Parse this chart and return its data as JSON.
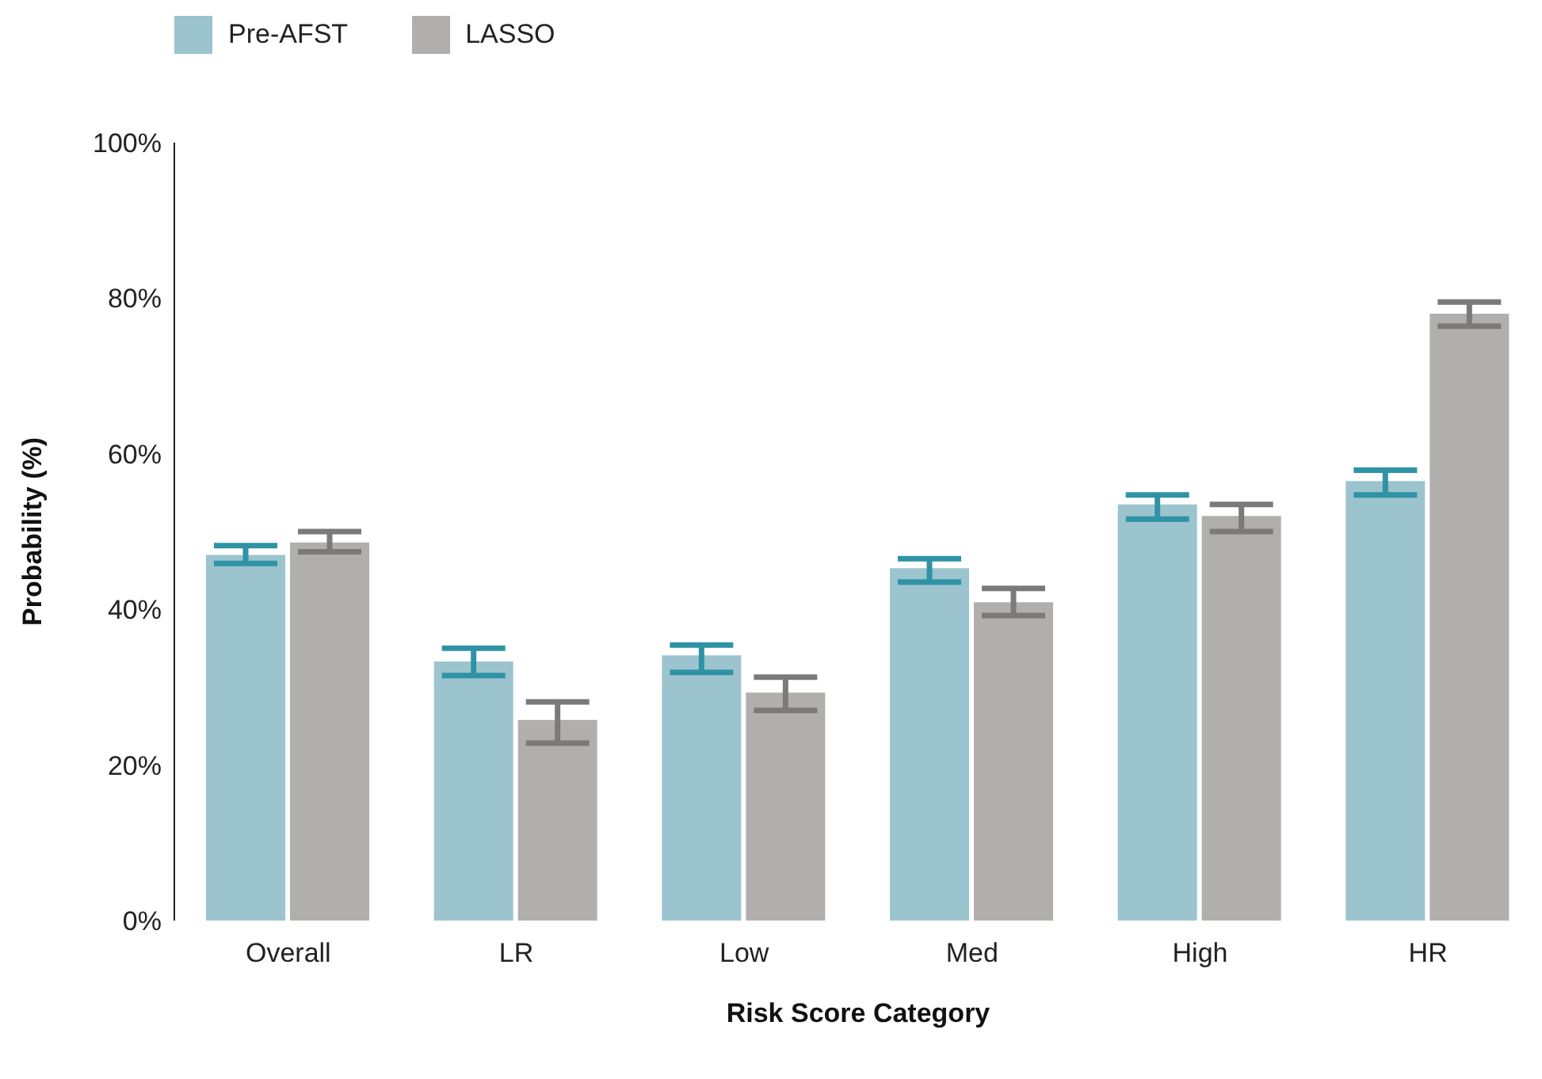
{
  "chart_data": {
    "type": "bar",
    "xlabel": "Risk Score Category",
    "ylabel": "Probability (%)",
    "categories": [
      "Overall",
      "LR",
      "Low",
      "Med",
      "High",
      "HR"
    ],
    "series": [
      {
        "name": "Pre-AFST",
        "color": "#9bc4ce",
        "values": [
          47,
          33.3,
          34.1,
          45.3,
          53.5,
          56.5
        ],
        "errors": [
          [
            45.9,
            48.2
          ],
          [
            31.5,
            35
          ],
          [
            31.9,
            35.4
          ],
          [
            43.5,
            46.5
          ],
          [
            51.6,
            54.7
          ],
          [
            54.7,
            57.9
          ]
        ]
      },
      {
        "name": "LASSO",
        "color": "#b0afae",
        "values": [
          48.6,
          25.8,
          29.3,
          40.9,
          52,
          78
        ],
        "errors": [
          [
            47.4,
            50
          ],
          [
            22.8,
            28.1
          ],
          [
            27,
            31.3
          ],
          [
            39.2,
            42.7
          ],
          [
            50,
            53.5
          ],
          [
            76.4,
            79.5
          ]
        ]
      }
    ],
    "ylim": [
      0,
      100
    ],
    "yticks": [
      {
        "value": 0,
        "label": "0%"
      },
      {
        "value": 20,
        "label": "20%"
      },
      {
        "value": 40,
        "label": "40%"
      },
      {
        "value": 60,
        "label": "60%"
      },
      {
        "value": 80,
        "label": "80%"
      },
      {
        "value": 100,
        "label": "100%"
      }
    ],
    "grid": false,
    "legend": "top left"
  }
}
